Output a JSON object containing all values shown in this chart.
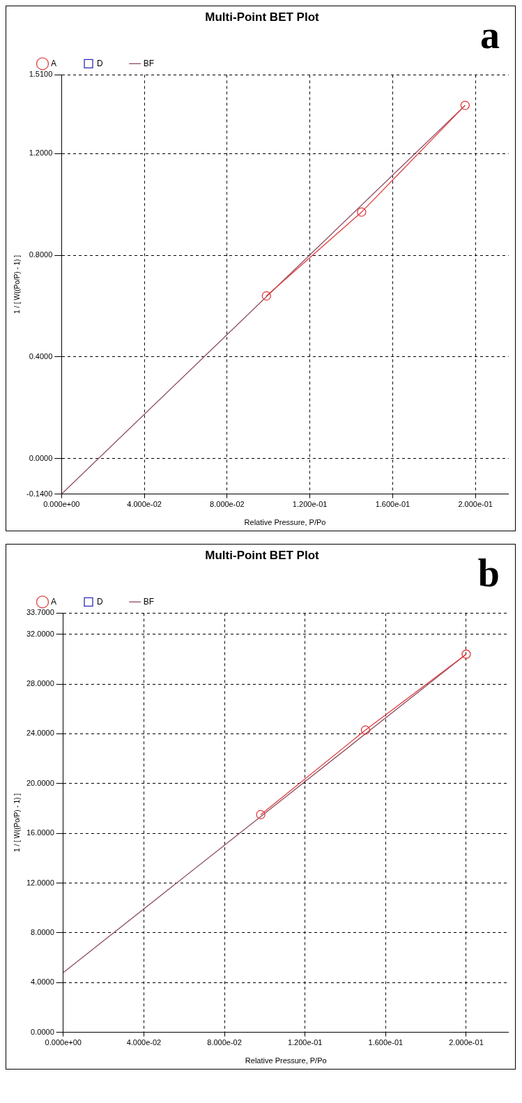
{
  "chart_data": [
    {
      "type": "line",
      "title": "Multi-Point BET Plot",
      "xlabel": "Relative Pressure, P/Po",
      "ylabel": "1 / [ W((Po/P) - 1) ]",
      "annotations": [
        "a"
      ],
      "legend": "top left",
      "grid": true,
      "xlim": [
        0,
        0.216
      ],
      "ylim": [
        -0.14,
        1.51
      ],
      "xticks": [
        {
          "value": 0,
          "label": "0.000e+00"
        },
        {
          "value": 0.04,
          "label": "4.000e-02"
        },
        {
          "value": 0.08,
          "label": "8.000e-02"
        },
        {
          "value": 0.12,
          "label": "1.200e-01"
        },
        {
          "value": 0.16,
          "label": "1.600e-01"
        },
        {
          "value": 0.2,
          "label": "2.000e-01"
        }
      ],
      "yticks": [
        {
          "value": -0.14,
          "label": "-0.1400"
        },
        {
          "value": 0,
          "label": "0.0000"
        },
        {
          "value": 0.4,
          "label": "0.4000"
        },
        {
          "value": 0.8,
          "label": "0.8000"
        },
        {
          "value": 1.2,
          "label": "1.2000"
        },
        {
          "value": 1.51,
          "label": "1.5100"
        }
      ],
      "series": [
        {
          "name": "A",
          "marker": "circle",
          "color": "#e03c3c",
          "x": [
            0.099,
            0.145,
            0.195
          ],
          "values": [
            0.64,
            0.97,
            1.39
          ]
        },
        {
          "name": "D",
          "marker": "square",
          "color": "#2a2ab4"
        },
        {
          "name": "BF",
          "marker": "none",
          "color": "#8a4a5e",
          "x": [
            0,
            0.195
          ],
          "values": [
            -0.14,
            1.39
          ]
        }
      ]
    },
    {
      "type": "line",
      "title": "Multi-Point BET Plot",
      "xlabel": "Relative Pressure, P/Po",
      "ylabel": "1 / [ W((Po/P) - 1) ]",
      "annotations": [
        "b"
      ],
      "legend": "top left",
      "grid": true,
      "xlim": [
        0,
        0.221
      ],
      "ylim": [
        0,
        33.7
      ],
      "xticks": [
        {
          "value": 0,
          "label": "0.000e+00"
        },
        {
          "value": 0.04,
          "label": "4.000e-02"
        },
        {
          "value": 0.08,
          "label": "8.000e-02"
        },
        {
          "value": 0.12,
          "label": "1.200e-01"
        },
        {
          "value": 0.16,
          "label": "1.600e-01"
        },
        {
          "value": 0.2,
          "label": "2.000e-01"
        }
      ],
      "yticks": [
        {
          "value": 0,
          "label": "0.0000"
        },
        {
          "value": 4,
          "label": "4.0000"
        },
        {
          "value": 8,
          "label": "8.0000"
        },
        {
          "value": 12,
          "label": "12.0000"
        },
        {
          "value": 16,
          "label": "16.0000"
        },
        {
          "value": 20,
          "label": "20.0000"
        },
        {
          "value": 24,
          "label": "24.0000"
        },
        {
          "value": 28,
          "label": "28.0000"
        },
        {
          "value": 32,
          "label": "32.0000"
        },
        {
          "value": 33.7,
          "label": "33.7000"
        }
      ],
      "series": [
        {
          "name": "A",
          "marker": "circle",
          "color": "#e03c3c",
          "x": [
            0.098,
            0.15,
            0.2
          ],
          "values": [
            17.5,
            24.3,
            30.4
          ]
        },
        {
          "name": "D",
          "marker": "square",
          "color": "#2a2ab4"
        },
        {
          "name": "BF",
          "marker": "none",
          "color": "#8a4a5e",
          "x": [
            0,
            0.2
          ],
          "values": [
            4.8,
            30.4
          ]
        }
      ]
    }
  ]
}
